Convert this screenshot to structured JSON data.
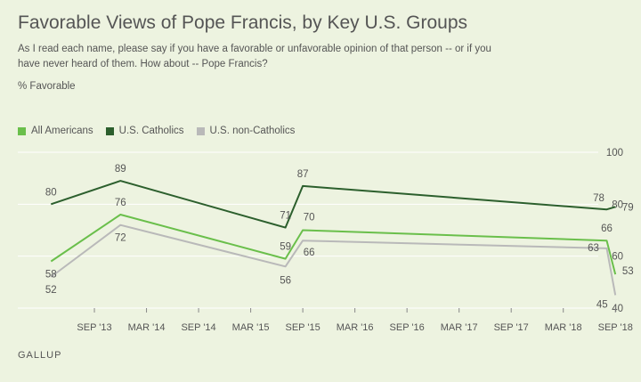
{
  "header": {
    "title": "Favorable Views of Pope Francis, by Key U.S. Groups",
    "subtitle": "As I read each name, please say if you have a favorable or unfavorable opinion of that person -- or if you have never heard of them. How about -- Pope Francis?",
    "unit": "% Favorable"
  },
  "source": "GALLUP",
  "chart_data": {
    "type": "line",
    "ylim": [
      40,
      100
    ],
    "yticks": [
      40,
      60,
      80,
      100
    ],
    "xticks": [
      "SEP '13",
      "MAR '14",
      "SEP '14",
      "MAR '15",
      "SEP '15",
      "MAR '16",
      "SEP '16",
      "MAR '17",
      "SEP '17",
      "MAR '18",
      "SEP '18"
    ],
    "x": [
      "2013-04",
      "2013-12",
      "2015-07",
      "2015-09",
      "2018-08",
      "2018-09"
    ],
    "series": [
      {
        "name": "All Americans",
        "color": "#6abf4b",
        "values": [
          58,
          76,
          59,
          70,
          66,
          53
        ],
        "labels": [
          "58",
          "76",
          "59",
          "70",
          "66",
          "53"
        ]
      },
      {
        "name": "U.S. Catholics",
        "color": "#2c5f2d",
        "values": [
          80,
          89,
          71,
          87,
          78,
          79
        ],
        "labels": [
          "80",
          "89",
          "71",
          "87",
          "78",
          "79"
        ]
      },
      {
        "name": "U.S. non-Catholics",
        "color": "#b9b9b9",
        "values": [
          52,
          72,
          56,
          66,
          63,
          45
        ],
        "labels": [
          "52",
          "72",
          "56",
          "66",
          "63",
          "45"
        ]
      }
    ]
  }
}
